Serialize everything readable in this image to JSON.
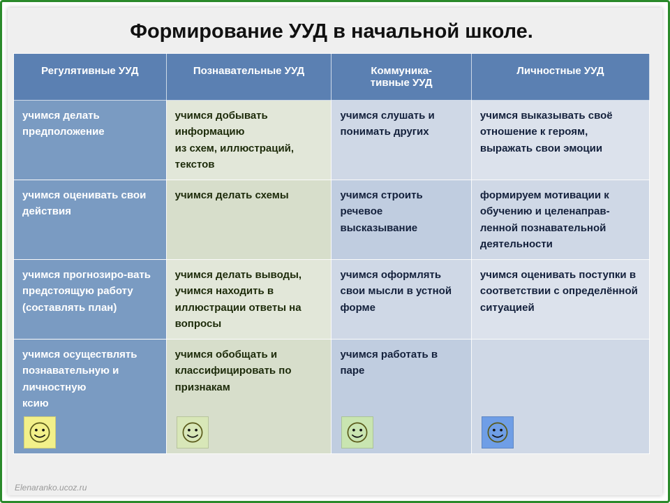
{
  "title": "Формирование УУД в начальной школе.",
  "columns": [
    {
      "label": "Регулятивные УУД",
      "header_bg": "#5b80b2",
      "header_color": "#ffffff",
      "body_bg": "#7a9bc2",
      "body_color": "#ffffff",
      "width_pct": 24,
      "smiley_bg": "#f2f08a",
      "smiley_show": true
    },
    {
      "label": "Познавательные УУД",
      "header_bg": "#5b80b2",
      "header_color": "#ffffff",
      "body_bg": "#d7decb",
      "body_color": "#1d2b0a",
      "width_pct": 26,
      "smiley_bg": "#d8e7b8",
      "smiley_show": true
    },
    {
      "label": "Коммуника-\nтивные УУД",
      "header_bg": "#5b80b2",
      "header_color": "#ffffff",
      "body_bg": "#c0cde0",
      "body_color": "#14213c",
      "width_pct": 22,
      "smiley_bg": "#c9e5b1",
      "smiley_show": true
    },
    {
      "label": "Личностные УУД",
      "header_bg": "#5b80b2",
      "header_color": "#ffffff",
      "body_bg": "#cfd8e6",
      "body_color": "#14213c",
      "width_pct": 28,
      "smiley_bg": "#6f9ee6",
      "smiley_show": true
    }
  ],
  "rows": [
    [
      "учимся делать предположение",
      "учимся добывать информацию\nиз схем, иллюстраций, текстов",
      "учимся слушать и понимать других",
      "учимся выказывать своё отношение к героям, выражать свои эмоции"
    ],
    [
      "учимся оценивать свои действия",
      "учимся делать схемы",
      "учимся строить речевое высказывание",
      "формируем мотивации к обучению и целенаправ-ленной познавательной деятельности"
    ],
    [
      "учимся прогнозиро-вать предстоящую работу (составлять план)",
      "учимся  делать выводы,\nучимся находить в иллюстрации ответы на вопросы",
      "учимся оформлять свои мысли в устной форме",
      "учимся оценивать поступки в соответствии с определённой ситуацией"
    ],
    [
      "учимся осуществлять познавательную и личностную\n        ксию",
      "учимся обобщать и классифицировать по признакам",
      "учимся работать в паре",
      ""
    ]
  ],
  "last_row_has_smileys": true,
  "frame_border_color": "#2a8a2a",
  "page_bg": "#efefef",
  "footer": "Elenaranko.ucoz.ru",
  "smiley": {
    "head_stroke": "#5a5a1a",
    "eye_fill": "#111111",
    "mouth_stroke": "#111111"
  },
  "fonts": {
    "title_size": 29,
    "header_size": 15,
    "cell_size": 15
  }
}
